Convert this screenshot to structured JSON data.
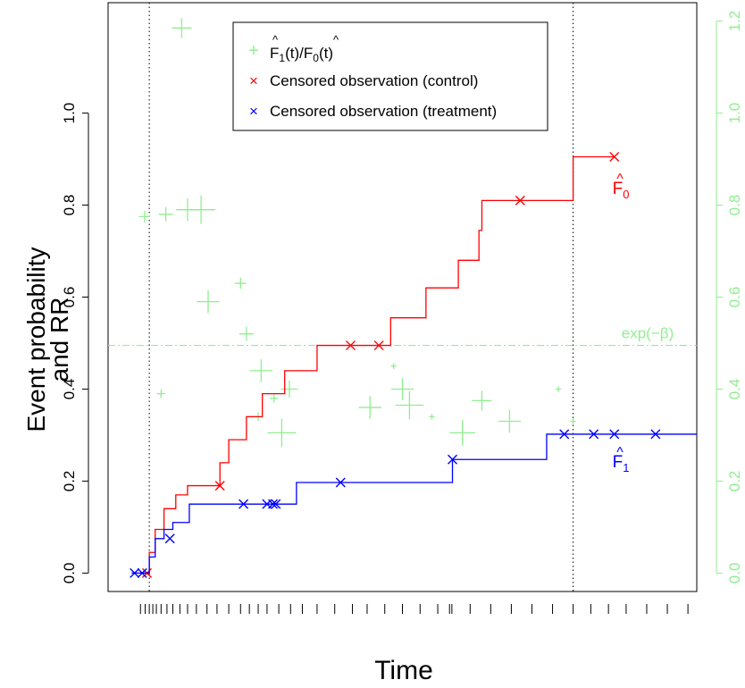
{
  "chart_data": {
    "type": "line",
    "title": "",
    "xlabel": "Time",
    "ylabel_line1": "Event probability",
    "ylabel_line2": "and RR",
    "ylim": [
      -0.04,
      1.24
    ],
    "y_ticks": [
      0.0,
      0.2,
      0.4,
      0.6,
      0.8,
      1.0
    ],
    "y2_ticks": [
      0.0,
      0.2,
      0.4,
      0.6,
      0.8,
      1.0,
      1.2
    ],
    "xlim": [
      0,
      10
    ],
    "x_rug": [
      0.55,
      0.63,
      0.7,
      0.76,
      0.82,
      0.9,
      1.0,
      1.1,
      1.22,
      1.35,
      1.5,
      1.68,
      1.85,
      2.05,
      2.25,
      2.4,
      2.55,
      2.7,
      2.9,
      3.1,
      3.3,
      3.55,
      3.85,
      4.15,
      4.4,
      4.7,
      5.0,
      5.3,
      5.6,
      5.8,
      5.84,
      6.15,
      6.5,
      6.85,
      7.2,
      7.55,
      7.9,
      8.2,
      8.5,
      8.8,
      9.15,
      9.5,
      9.85
    ],
    "vlines": [
      0.7,
      7.9
    ],
    "series": [
      {
        "name": "F0",
        "label_main": "F",
        "label_hat": "^",
        "label_sub": "0",
        "color": "#ff0000",
        "steps_x": [
          0.55,
          0.7,
          0.8,
          0.95,
          1.15,
          1.35,
          1.75,
          1.9,
          2.05,
          2.35,
          2.62,
          3.0,
          3.55,
          4.1,
          4.8,
          5.4,
          5.95,
          6.3,
          6.35,
          7.0,
          7.9,
          8.6
        ],
        "steps_y": [
          0.0,
          0.045,
          0.095,
          0.14,
          0.17,
          0.19,
          0.19,
          0.24,
          0.29,
          0.34,
          0.39,
          0.44,
          0.495,
          0.495,
          0.555,
          0.62,
          0.68,
          0.745,
          0.81,
          0.81,
          0.905,
          0.905
        ],
        "censored_x": [
          0.66,
          1.9,
          4.12,
          4.6,
          7.0,
          8.6
        ],
        "censored_y": [
          0.0,
          0.19,
          0.495,
          0.495,
          0.81,
          0.905
        ]
      },
      {
        "name": "F1",
        "label_main": "F",
        "label_hat": "^",
        "label_sub": "1",
        "color": "#0000ff",
        "steps_x": [
          0.4,
          0.7,
          0.8,
          0.95,
          1.1,
          1.38,
          1.75,
          2.4,
          2.55,
          2.7,
          3.2,
          3.55,
          4.1,
          5.85,
          7.0,
          7.45,
          10.0
        ],
        "steps_y": [
          0.0,
          0.035,
          0.075,
          0.095,
          0.11,
          0.15,
          0.15,
          0.15,
          0.15,
          0.15,
          0.197,
          0.197,
          0.197,
          0.247,
          0.247,
          0.302,
          0.302
        ],
        "censored_x": [
          0.45,
          0.58,
          1.05,
          2.3,
          2.7,
          2.8,
          2.85,
          3.95,
          5.85,
          7.75,
          8.25,
          8.6,
          9.3
        ],
        "censored_y": [
          0.0,
          0.0,
          0.075,
          0.15,
          0.15,
          0.15,
          0.15,
          0.197,
          0.247,
          0.302,
          0.302,
          0.302,
          0.302
        ]
      }
    ],
    "ratio_points": {
      "name": "F1(t)/F0(t)",
      "color": "#90ee90",
      "x": [
        0.62,
        0.9,
        0.98,
        1.25,
        1.35,
        1.58,
        1.7,
        2.25,
        2.35,
        2.55,
        2.6,
        2.82,
        2.95,
        3.08,
        4.45,
        4.85,
        5.0,
        5.12,
        5.5,
        6.02,
        6.35,
        6.82,
        7.65,
        7.9
      ],
      "y": [
        0.775,
        0.39,
        0.78,
        1.185,
        0.79,
        0.79,
        0.59,
        0.63,
        0.52,
        0.34,
        0.44,
        0.38,
        0.305,
        0.4,
        0.36,
        0.45,
        0.4,
        0.365,
        0.34,
        0.305,
        0.375,
        0.33,
        0.4,
        0.33
      ],
      "size": [
        3,
        2,
        4,
        6,
        7,
        9,
        7,
        3,
        4,
        2,
        7,
        2,
        9,
        5,
        7,
        1,
        7,
        9,
        1,
        8,
        6,
        7,
        1,
        1
      ]
    },
    "hline": {
      "y": 0.495,
      "label_fn": "exp(",
      "label_sym": "−β",
      "label_end": ")",
      "color": "#90ee90"
    },
    "legend": {
      "placement": "top",
      "entries": [
        {
          "symbol": "+",
          "color": "#90ee90",
          "text_main": "F",
          "text_hat": "^",
          "text_sub": "1",
          "text_mid": "(t)/",
          "text_main2": "F",
          "text_sub2": "0",
          "text_end": "(t)"
        },
        {
          "symbol": "×",
          "color": "#ff0000",
          "text": "Censored observation (control)"
        },
        {
          "symbol": "×",
          "color": "#0000ff",
          "text": "Censored observation (treatment)"
        }
      ]
    }
  }
}
